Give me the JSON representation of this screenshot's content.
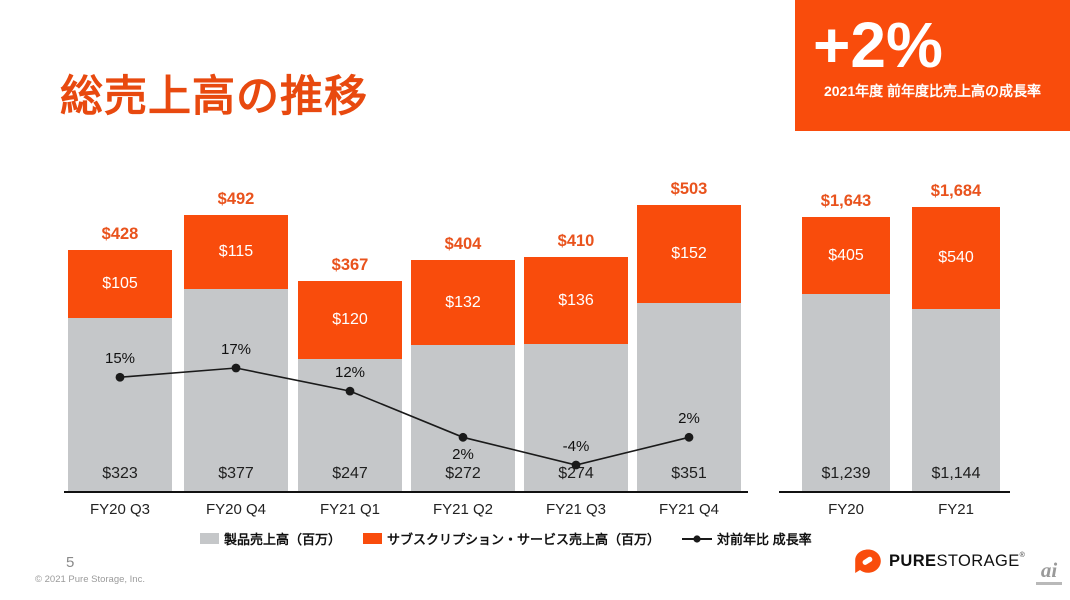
{
  "slide": {
    "title": "総売上高の推移",
    "page_number": "5",
    "copyright": "© 2021 Pure Storage, Inc.",
    "watermark": "ai"
  },
  "highlight_badge": {
    "value": "+2%",
    "caption": "2021年度 前年度比売上高の成長率"
  },
  "logo": {
    "brand_bold": "PURE",
    "brand_regular": "STORAGE",
    "trademark": "®"
  },
  "colors": {
    "accent_orange": "#F94C0C",
    "label_orange": "#E9531D",
    "title_orange": "#E8490F",
    "bar_gray": "#C5C7C9",
    "line_black": "#1a1a1a"
  },
  "legend": {
    "items": [
      {
        "swatch": "gray-square",
        "label": "製品売上高（百万）"
      },
      {
        "swatch": "orange-square",
        "label": "サブスクリプション・サービス売上高（百万）"
      },
      {
        "swatch": "line-marker",
        "label": "対前年比 成長率"
      }
    ]
  },
  "chart_data": [
    {
      "type": "bar",
      "stacked": true,
      "title": "四半期別売上高",
      "categories": [
        "FY20 Q3",
        "FY20 Q4",
        "FY21 Q1",
        "FY21 Q2",
        "FY21 Q3",
        "FY21 Q4"
      ],
      "series": [
        {
          "name": "製品売上高（百万）",
          "color": "#C5C7C9",
          "values": [
            323,
            377,
            247,
            272,
            274,
            351
          ],
          "labels": [
            "$323",
            "$377",
            "$247",
            "$272",
            "$274",
            "$351"
          ]
        },
        {
          "name": "サブスクリプション・サービス売上高（百万）",
          "color": "#F94C0C",
          "values": [
            105,
            115,
            120,
            132,
            136,
            152
          ],
          "labels": [
            "$105",
            "$115",
            "$120",
            "$132",
            "$136",
            "$152"
          ]
        }
      ],
      "totals": [
        "$428",
        "$492",
        "$367",
        "$404",
        "$410",
        "$503"
      ],
      "line_series": {
        "name": "対前年比 成長率",
        "values": [
          15,
          17,
          12,
          2,
          -4,
          2
        ],
        "labels": [
          "15%",
          "17%",
          "12%",
          "2%",
          "-4%",
          "2%"
        ],
        "axis": "secondary"
      },
      "grid": false,
      "legend_position": "bottom"
    },
    {
      "type": "bar",
      "stacked": true,
      "title": "年度別売上高",
      "categories": [
        "FY20",
        "FY21"
      ],
      "series": [
        {
          "name": "製品売上高（百万）",
          "color": "#C5C7C9",
          "values": [
            1239,
            1144
          ],
          "labels": [
            "$1,239",
            "$1,144"
          ]
        },
        {
          "name": "サブスクリプション・サービス売上高（百万）",
          "color": "#F94C0C",
          "values": [
            405,
            540
          ],
          "labels": [
            "$405",
            "$540"
          ]
        }
      ],
      "totals": [
        "$1,643",
        "$1,684"
      ],
      "grid": false
    }
  ]
}
